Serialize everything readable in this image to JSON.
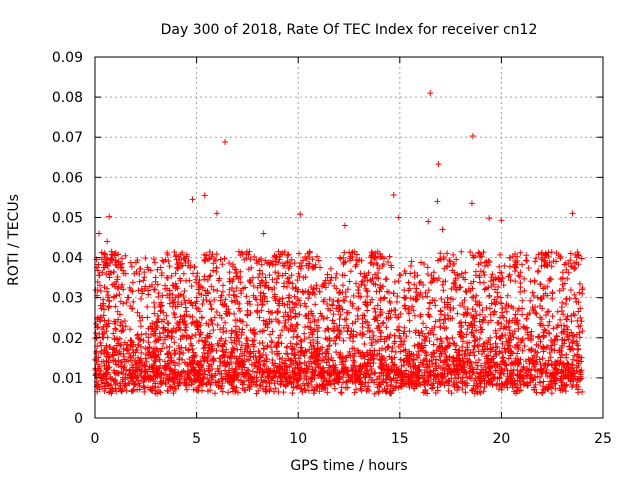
{
  "chart_data": {
    "type": "scatter",
    "title": "Day 300 of 2018, Rate Of TEC Index for receiver cn12",
    "xlabel": "GPS time / hours",
    "ylabel": "ROTI / TECUs",
    "xlim": [
      0,
      25
    ],
    "ylim": [
      0,
      0.09
    ],
    "xticks": [
      0,
      5,
      10,
      15,
      20,
      25
    ],
    "xtick_labels": [
      "0",
      "5",
      "10",
      "15",
      "20",
      "25"
    ],
    "yticks": [
      0,
      0.01,
      0.02,
      0.03,
      0.04,
      0.05,
      0.06,
      0.07,
      0.08,
      0.09
    ],
    "ytick_labels": [
      "0",
      "0.01",
      "0.02",
      "0.03",
      "0.04",
      "0.05",
      "0.06",
      "0.07",
      "0.08",
      "0.09"
    ],
    "grid": true,
    "marker": "plus",
    "color": "#ff0000",
    "series": [
      {
        "name": "ROTI",
        "outliers": [
          {
            "x": 16.5,
            "y": 0.081
          },
          {
            "x": 18.6,
            "y": 0.0703
          },
          {
            "x": 6.4,
            "y": 0.0688
          },
          {
            "x": 16.9,
            "y": 0.0633
          },
          {
            "x": 5.4,
            "y": 0.0555
          },
          {
            "x": 14.7,
            "y": 0.0556
          },
          {
            "x": 4.8,
            "y": 0.0545
          },
          {
            "x": 16.85,
            "y": 0.054
          },
          {
            "x": 18.55,
            "y": 0.0535
          },
          {
            "x": 6.0,
            "y": 0.051
          },
          {
            "x": 10.1,
            "y": 0.0508
          },
          {
            "x": 23.5,
            "y": 0.051
          },
          {
            "x": 0.7,
            "y": 0.0502
          },
          {
            "x": 14.95,
            "y": 0.05
          },
          {
            "x": 19.4,
            "y": 0.0498
          },
          {
            "x": 20.0,
            "y": 0.0493
          },
          {
            "x": 16.4,
            "y": 0.049
          },
          {
            "x": 12.3,
            "y": 0.048
          },
          {
            "x": 17.1,
            "y": 0.047
          },
          {
            "x": 0.2,
            "y": 0.046
          },
          {
            "x": 8.3,
            "y": 0.046
          },
          {
            "x": 0.6,
            "y": 0.044
          }
        ],
        "band": {
          "description": "dense cloud of points",
          "x_range": [
            0,
            24
          ],
          "y_min_typical": 0.005,
          "y_max_typical": 0.04
        }
      }
    ]
  }
}
